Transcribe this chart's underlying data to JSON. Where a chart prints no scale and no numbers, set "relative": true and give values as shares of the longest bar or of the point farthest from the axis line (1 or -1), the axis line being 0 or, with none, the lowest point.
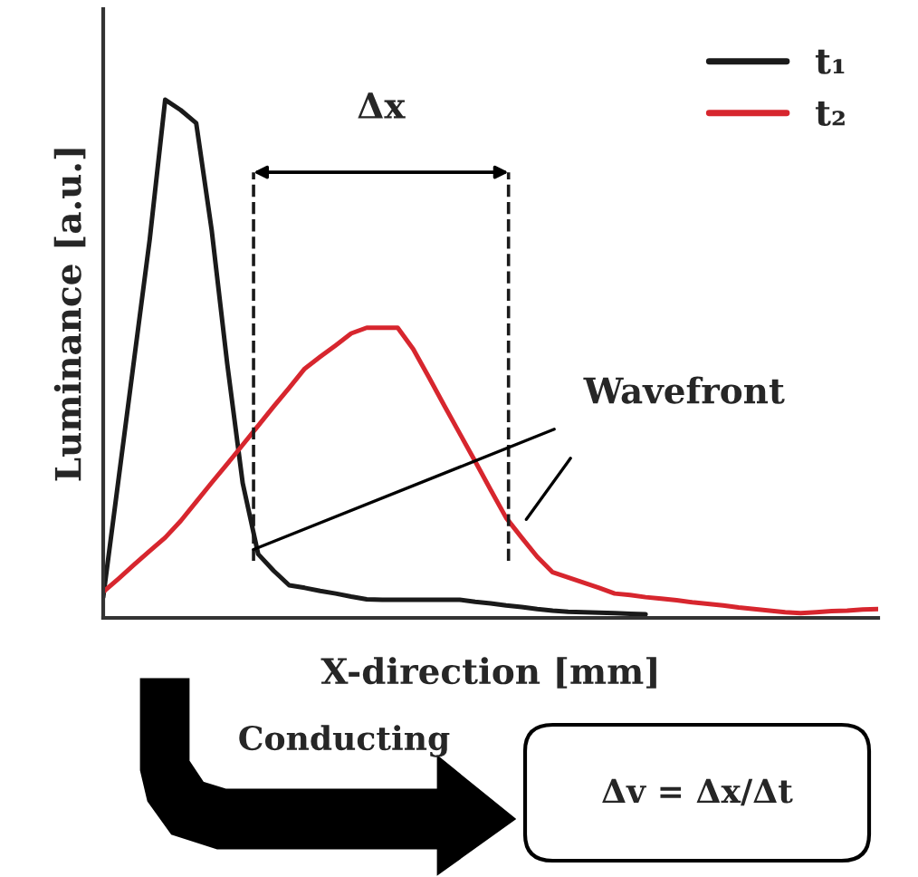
{
  "chart_data": {
    "type": "line",
    "relative": true,
    "xlabel": "X-direction [mm]",
    "ylabel": "Luminance [a.u.]",
    "categories": [
      null,
      null,
      null,
      null,
      null,
      null,
      null,
      null,
      null,
      null,
      null,
      null,
      null,
      null,
      null,
      null,
      null,
      null,
      null,
      null,
      null,
      null,
      null,
      null,
      null,
      null,
      null,
      null,
      null,
      null,
      null,
      null,
      null,
      null,
      null,
      null,
      null,
      null,
      null,
      null,
      null,
      null,
      null,
      null,
      null,
      null,
      null,
      null,
      null,
      null,
      null
    ],
    "tick_labels": false,
    "legend": "top right",
    "marker": "none",
    "line_style": "solid",
    "series": [
      {
        "name": "t₁",
        "color": "#1a1a1a",
        "values": [
          0.04,
          0.27,
          0.5,
          0.73,
          1.0,
          0.98,
          0.955,
          0.748,
          0.491,
          0.26,
          0.123,
          0.091,
          0.063,
          0.058,
          0.052,
          0.047,
          0.041,
          0.036,
          0.035,
          0.035,
          0.035,
          0.035,
          0.035,
          0.035,
          0.031,
          0.028,
          0.024,
          0.021,
          0.017,
          0.014,
          0.012,
          0.011,
          0.01,
          0.009,
          0.008,
          0.007,
          null,
          null,
          null,
          null,
          null,
          null,
          null,
          null,
          null,
          null,
          null,
          null,
          null,
          null,
          null
        ]
      },
      {
        "name": "t₂",
        "color": "#d7262e",
        "values": [
          0.05,
          0.076,
          0.103,
          0.129,
          0.155,
          0.187,
          0.224,
          0.261,
          0.297,
          0.334,
          0.371,
          0.408,
          0.444,
          0.481,
          0.504,
          0.526,
          0.549,
          0.56,
          0.56,
          0.56,
          0.519,
          0.465,
          0.41,
          0.356,
          0.302,
          0.247,
          0.193,
          0.155,
          0.118,
          0.088,
          0.078,
          0.068,
          0.058,
          0.047,
          0.044,
          0.04,
          0.037,
          0.034,
          0.03,
          0.027,
          0.024,
          0.02,
          0.017,
          0.014,
          0.011,
          0.009,
          0.011,
          0.013,
          0.014,
          0.016,
          0.017
        ]
      }
    ],
    "annotations": [
      "Δx",
      "Wavefront",
      "Conducting",
      "Δv = Δx/Δt"
    ]
  }
}
